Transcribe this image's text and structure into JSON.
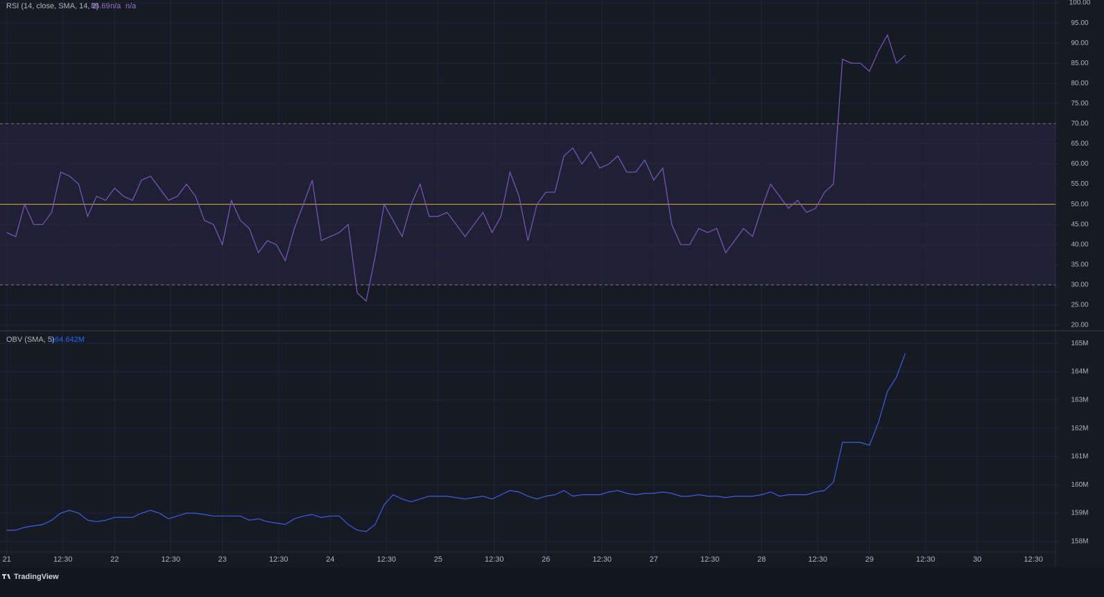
{
  "chart_data": [
    {
      "type": "line",
      "title": "RSI (14, close, SMA, 14, 2)",
      "last_value": "86.69",
      "extra_values": [
        "n/a",
        "n/a"
      ],
      "color": "#7e57c2",
      "x": [
        0,
        2,
        4,
        6,
        8,
        10,
        12,
        14,
        16,
        18,
        20,
        22,
        24,
        26,
        28,
        30,
        32,
        34,
        36,
        38,
        40,
        42,
        44,
        46,
        48,
        50,
        52,
        54,
        56,
        58,
        60,
        62,
        64,
        66,
        68,
        70,
        72,
        74,
        76,
        78,
        80,
        82,
        84,
        86,
        88,
        90,
        92,
        94,
        96,
        98,
        100,
        102,
        104,
        106,
        108,
        110,
        112,
        114,
        116,
        118,
        120,
        122,
        124,
        126,
        128,
        130,
        132,
        134,
        136,
        138,
        140,
        142,
        144,
        146,
        148,
        150,
        152,
        154,
        156,
        158,
        160,
        162,
        164,
        166,
        168,
        170,
        172,
        174,
        176,
        178,
        180,
        182,
        184,
        186,
        188,
        190,
        192,
        194,
        196,
        198,
        200
      ],
      "values": [
        43,
        42,
        50,
        45,
        45,
        48,
        58,
        57,
        55,
        47,
        52,
        51,
        54,
        52,
        51,
        56,
        57,
        54,
        51,
        52,
        55,
        52,
        46,
        45,
        40,
        51,
        46,
        44,
        38,
        41,
        40,
        36,
        44,
        50,
        56,
        41,
        42,
        43,
        45,
        28,
        26,
        37,
        50,
        46,
        42,
        50,
        55,
        47,
        47,
        48,
        45,
        42,
        45,
        48,
        43,
        47,
        58,
        52,
        41,
        50,
        53,
        53,
        62,
        64,
        60,
        63,
        59,
        60,
        62,
        58,
        58,
        61,
        56,
        59,
        45,
        40,
        40,
        44,
        43,
        44,
        38,
        41,
        44,
        42,
        49,
        55,
        52,
        49,
        51,
        48,
        49,
        53,
        55,
        86,
        85,
        85,
        83,
        88,
        92,
        85,
        87
      ],
      "bands": {
        "upper": 70,
        "lower": 30,
        "middle": 50,
        "fill": "#7e57c2",
        "middle_color": "#d4b44a"
      },
      "xlim": [
        -1.5,
        233.4
      ],
      "ylim": [
        18.8,
        100.7
      ],
      "yticks": [
        {
          "value": 20,
          "label": "20.00"
        },
        {
          "value": 25,
          "label": "25.00"
        },
        {
          "value": 30,
          "label": "30.00"
        },
        {
          "value": 35,
          "label": "35.00"
        },
        {
          "value": 40,
          "label": "40.00"
        },
        {
          "value": 45,
          "label": "45.00"
        },
        {
          "value": 50,
          "label": "50.00"
        },
        {
          "value": 55,
          "label": "55.00"
        },
        {
          "value": 60,
          "label": "60.00"
        },
        {
          "value": 65,
          "label": "65.00"
        },
        {
          "value": 70,
          "label": "70.00"
        },
        {
          "value": 75,
          "label": "75.00"
        },
        {
          "value": 80,
          "label": "80.00"
        },
        {
          "value": 85,
          "label": "85.00"
        },
        {
          "value": 90,
          "label": "90.00"
        },
        {
          "value": 95,
          "label": "95.00"
        },
        {
          "value": 100,
          "label": "100.00"
        }
      ],
      "grid": true
    },
    {
      "type": "line",
      "title": "OBV (SMA, 5)",
      "last_value": "164.642M",
      "color": "#3d5fe0",
      "x": [
        0,
        2,
        4,
        6,
        8,
        10,
        12,
        14,
        16,
        18,
        20,
        22,
        24,
        26,
        28,
        30,
        32,
        34,
        36,
        38,
        40,
        42,
        44,
        46,
        48,
        50,
        52,
        54,
        56,
        58,
        60,
        62,
        64,
        66,
        68,
        70,
        72,
        74,
        76,
        78,
        80,
        82,
        84,
        86,
        88,
        90,
        92,
        94,
        96,
        98,
        100,
        102,
        104,
        106,
        108,
        110,
        112,
        114,
        116,
        118,
        120,
        122,
        124,
        126,
        128,
        130,
        132,
        134,
        136,
        138,
        140,
        142,
        144,
        146,
        148,
        150,
        152,
        154,
        156,
        158,
        160,
        162,
        164,
        166,
        168,
        170,
        172,
        174,
        176,
        178,
        180,
        182,
        184,
        186,
        188,
        190,
        192,
        194,
        196,
        198,
        200
      ],
      "values": [
        158400000,
        158400000,
        158500000,
        158550000,
        158600000,
        158750000,
        159000000,
        159100000,
        159000000,
        158750000,
        158700000,
        158750000,
        158850000,
        158850000,
        158850000,
        159000000,
        159100000,
        159000000,
        158800000,
        158900000,
        159000000,
        159000000,
        158950000,
        158900000,
        158900000,
        158900000,
        158900000,
        158750000,
        158800000,
        158700000,
        158650000,
        158600000,
        158800000,
        158900000,
        158950000,
        158850000,
        158900000,
        158900000,
        158600000,
        158400000,
        158350000,
        158600000,
        159300000,
        159650000,
        159500000,
        159400000,
        159500000,
        159600000,
        159600000,
        159600000,
        159550000,
        159500000,
        159550000,
        159600000,
        159500000,
        159650000,
        159800000,
        159750000,
        159600000,
        159500000,
        159600000,
        159650000,
        159800000,
        159600000,
        159650000,
        159650000,
        159650000,
        159750000,
        159800000,
        159700000,
        159650000,
        159700000,
        159700000,
        159750000,
        159700000,
        159600000,
        159600000,
        159650000,
        159600000,
        159600000,
        159550000,
        159600000,
        159600000,
        159600000,
        159650000,
        159750000,
        159600000,
        159650000,
        159650000,
        159650000,
        159750000,
        159800000,
        160100000,
        161500000,
        161500000,
        161500000,
        161400000,
        162200000,
        163300000,
        163800000,
        164650000
      ],
      "xlim": [
        -1.5,
        233.4
      ],
      "ylim": [
        157630000,
        165420000
      ],
      "yticks": [
        {
          "value": 158000000,
          "label": "158M"
        },
        {
          "value": 159000000,
          "label": "159M"
        },
        {
          "value": 160000000,
          "label": "160M"
        },
        {
          "value": 161000000,
          "label": "161M"
        },
        {
          "value": 162000000,
          "label": "162M"
        },
        {
          "value": 163000000,
          "label": "163M"
        },
        {
          "value": 164000000,
          "label": "164M"
        },
        {
          "value": 165000000,
          "label": "165M"
        }
      ],
      "xticks": [
        {
          "value": 0,
          "label": "21"
        },
        {
          "value": 12.5,
          "label": "12:30"
        },
        {
          "value": 24,
          "label": "22"
        },
        {
          "value": 36.5,
          "label": "12:30"
        },
        {
          "value": 48,
          "label": "23"
        },
        {
          "value": 60.5,
          "label": "12:30"
        },
        {
          "value": 72,
          "label": "24"
        },
        {
          "value": 84.5,
          "label": "12:30"
        },
        {
          "value": 96,
          "label": "25"
        },
        {
          "value": 108.5,
          "label": "12:30"
        },
        {
          "value": 120,
          "label": "26"
        },
        {
          "value": 132.5,
          "label": "12:30"
        },
        {
          "value": 144,
          "label": "27"
        },
        {
          "value": 156.5,
          "label": "12:30"
        },
        {
          "value": 168,
          "label": "28"
        },
        {
          "value": 180.5,
          "label": "12:30"
        },
        {
          "value": 192,
          "label": "29"
        },
        {
          "value": 204.5,
          "label": "12:30"
        },
        {
          "value": 216,
          "label": "30"
        },
        {
          "value": 228.5,
          "label": "12:30"
        }
      ],
      "grid": true
    }
  ],
  "footer": {
    "brand": "TradingView"
  }
}
